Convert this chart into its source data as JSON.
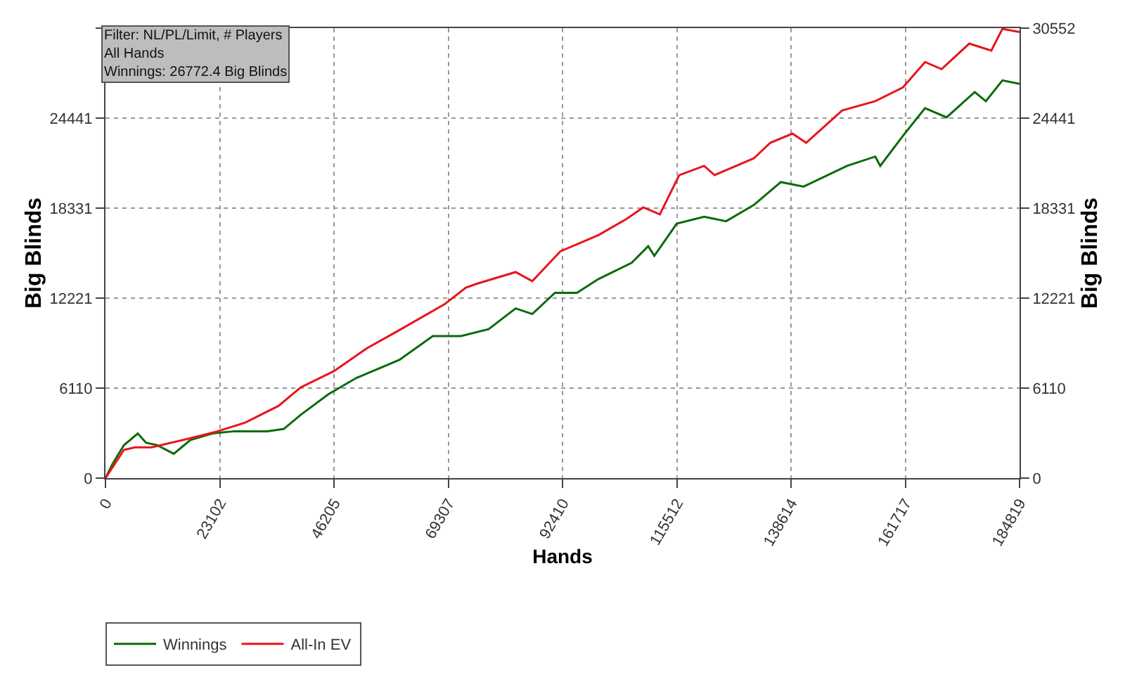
{
  "chart_data": {
    "type": "line",
    "xlabel": "Hands",
    "ylabel": "Big Blinds",
    "y2label": "Big Blinds",
    "annotations": [
      "Filter: NL/PL/Limit, # Players\nAll Hands\nWinnings: 26772.4 Big Blinds"
    ],
    "series": [
      {
        "name": "Winnings",
        "color": "#0a6b0a",
        "x": [
          0,
          1500,
          3750,
          6530,
          8210,
          10460,
          13810,
          17160,
          21610,
          26000,
          32710,
          36060,
          39410,
          45070,
          50670,
          59480,
          66180,
          71880,
          77470,
          82940,
          86290,
          90880,
          95330,
          99690,
          106390,
          109740,
          110980,
          115510,
          121040,
          125490,
          131090,
          136560,
          141150,
          149960,
          155650,
          156660,
          161250,
          165710,
          170070,
          175760,
          178010,
          181360,
          184819
        ],
        "values": [
          0,
          1000,
          2240,
          3030,
          2400,
          2240,
          1650,
          2590,
          3030,
          3180,
          3180,
          3340,
          4280,
          5690,
          6790,
          8040,
          9640,
          9640,
          10110,
          11520,
          11140,
          12580,
          12580,
          13520,
          14620,
          15750,
          15090,
          17280,
          17750,
          17440,
          18540,
          20100,
          19790,
          21200,
          21830,
          21200,
          23240,
          25120,
          24490,
          26210,
          25590,
          27000,
          26772
        ]
      },
      {
        "name": "All-In EV",
        "color": "#e8141b",
        "x": [
          0,
          3750,
          5960,
          9320,
          17160,
          22720,
          28320,
          35020,
          39480,
          46180,
          52880,
          59580,
          68530,
          72880,
          75230,
          82940,
          86290,
          91980,
          99690,
          105390,
          108740,
          112090,
          116010,
          121040,
          123150,
          131090,
          134440,
          138900,
          141680,
          148960,
          155650,
          161250,
          165710,
          169060,
          174650,
          179110,
          181360,
          184819
        ],
        "values": [
          0,
          1920,
          2090,
          2090,
          2710,
          3180,
          3780,
          4910,
          6160,
          7260,
          8820,
          10080,
          11800,
          12930,
          13210,
          13990,
          13370,
          15400,
          16500,
          17600,
          18380,
          17910,
          20570,
          21200,
          20570,
          21710,
          22770,
          23390,
          22770,
          24960,
          25590,
          26530,
          28250,
          27770,
          29500,
          29030,
          30500,
          30290
        ]
      }
    ],
    "xlim": [
      0,
      184819
    ],
    "xticks": [
      0,
      23102,
      46205,
      69307,
      92410,
      115512,
      138614,
      161717,
      184819
    ],
    "ylim": [
      0,
      30552
    ],
    "yticks": [
      0,
      6110,
      12221,
      18331,
      24441,
      {
        "value": 30552,
        "label": null
      }
    ],
    "y2lim": [
      0,
      30552
    ],
    "y2ticks": [
      0,
      6110,
      12221,
      18331,
      24441,
      30552
    ],
    "grid": true,
    "legend": "bottom left",
    "marker": "none",
    "line_style": "solid"
  }
}
